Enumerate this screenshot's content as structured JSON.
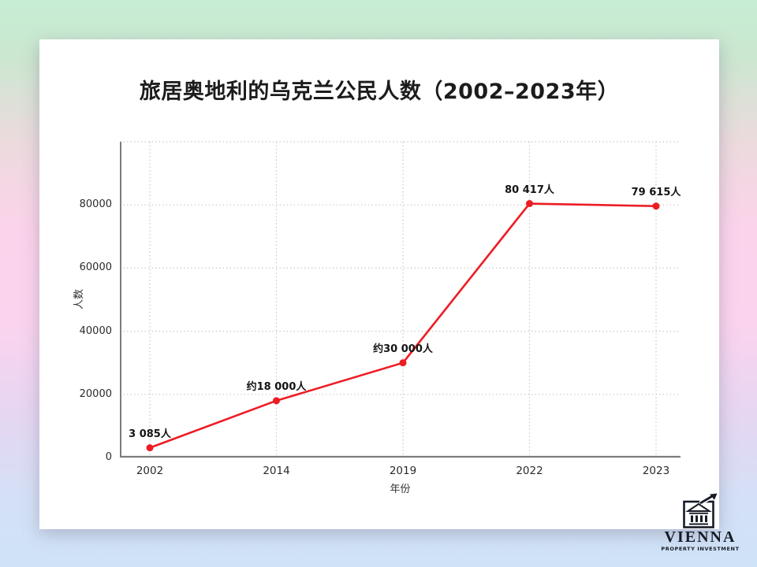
{
  "slide": {
    "title": "旅居奥地利的乌克兰公民人数（2002–2023年）"
  },
  "chart_data": {
    "type": "line",
    "title": "旅居奥地利的乌克兰公民人数（2002–2023年）",
    "categories": [
      "2002",
      "2014",
      "2019",
      "2022",
      "2023"
    ],
    "values": [
      3085,
      18000,
      30000,
      80417,
      79615
    ],
    "point_labels": [
      "3 085人",
      "约18 000人",
      "约30 000人",
      "80 417人",
      "79 615人"
    ],
    "xlabel": "年份",
    "ylabel": "人数",
    "ylim": [
      0,
      100000
    ],
    "yticks": [
      0,
      20000,
      40000,
      60000,
      80000
    ],
    "gridline_values": [
      20000,
      40000,
      60000,
      80000,
      100000
    ],
    "grid": "dotted",
    "legend_position": "none",
    "line_color": "#ed1c24",
    "marker": "circle"
  },
  "logo": {
    "name": "VIENNA",
    "tagline": "PROPERTY INVESTMENT",
    "icon": "classical-building-with-growth-arrow",
    "color": "#161b26"
  },
  "colors": {
    "background_top": "#c7edd4",
    "background_middle": "#fbd3ea",
    "background_bottom": "#cfe3f8",
    "card": "#ffffff",
    "grid": "#c9c9c9",
    "axis": "#7d7d7d",
    "title_text": "#1c1c1c"
  }
}
